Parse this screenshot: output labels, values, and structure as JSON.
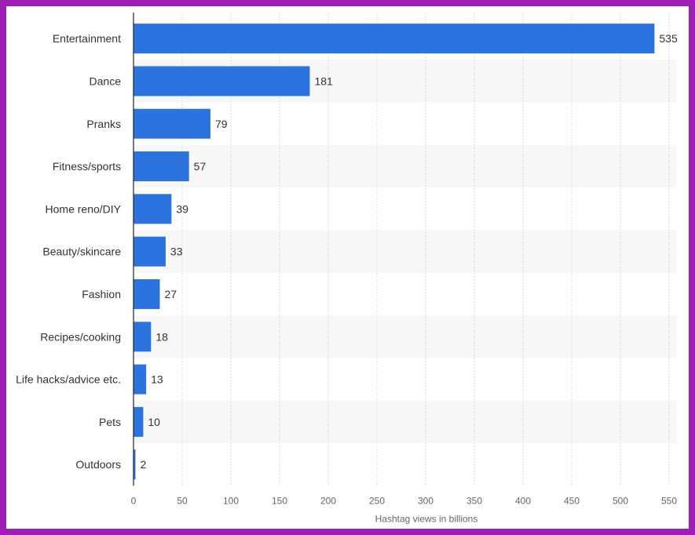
{
  "chart_data": {
    "type": "bar",
    "orientation": "horizontal",
    "categories": [
      "Entertainment",
      "Dance",
      "Pranks",
      "Fitness/sports",
      "Home reno/DIY",
      "Beauty/skincare",
      "Fashion",
      "Recipes/cooking",
      "Life hacks/advice etc.",
      "Pets",
      "Outdoors"
    ],
    "values": [
      535,
      181,
      79,
      57,
      39,
      33,
      27,
      18,
      13,
      10,
      2
    ],
    "xlabel": "Hashtag views in billions",
    "ylabel": "",
    "xlim": [
      0,
      550
    ],
    "xticks": [
      0,
      50,
      100,
      150,
      200,
      250,
      300,
      350,
      400,
      450,
      500,
      550
    ],
    "grid": true,
    "bar_color": "#2b74e0",
    "band_color": "#f7f7f7"
  }
}
